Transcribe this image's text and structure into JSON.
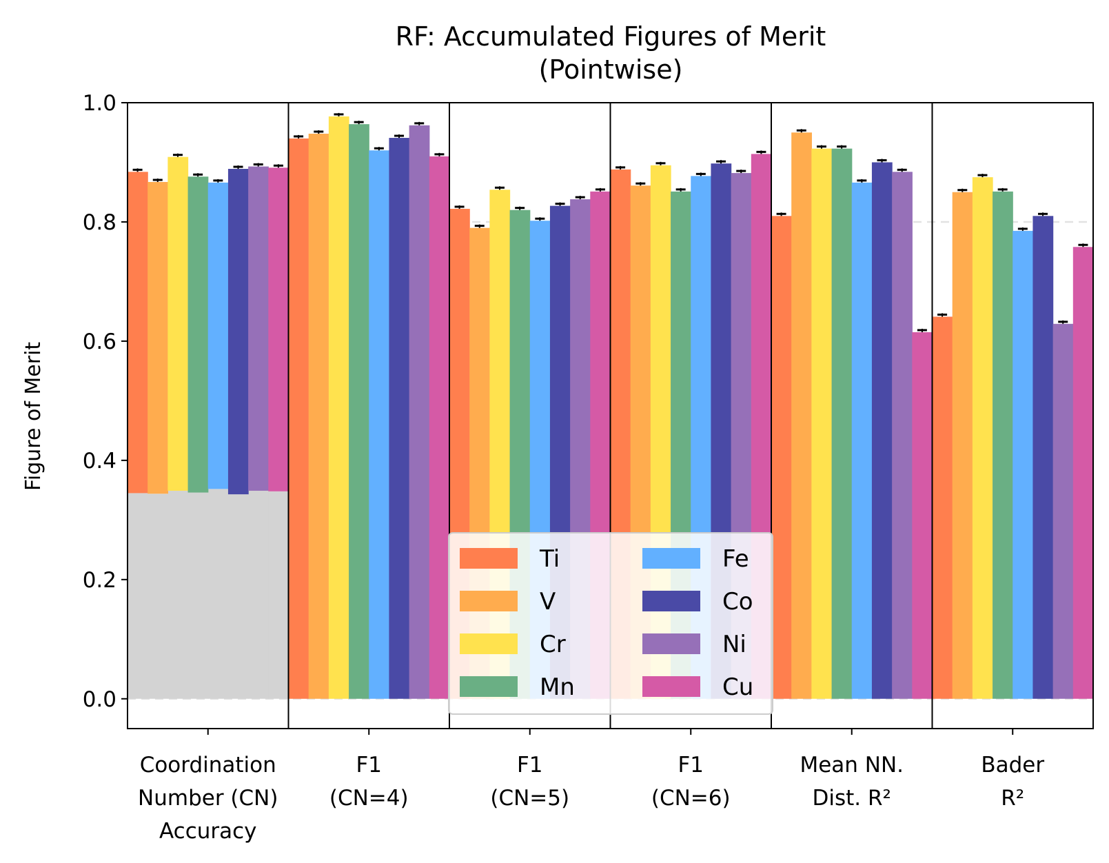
{
  "chart_data": {
    "type": "bar",
    "title": "RF: Accumulated Figures of Merit",
    "subtitle": "(Pointwise)",
    "xlabel": "",
    "ylabel": "Figure of Merit",
    "ylim": [
      -0.05,
      1.0
    ],
    "yticks": [
      "0.0",
      "0.2",
      "0.4",
      "0.6",
      "0.8",
      "1.0"
    ],
    "ytick_values": [
      0.0,
      0.2,
      0.4,
      0.6,
      0.8,
      1.0
    ],
    "grid": "horizontal dashed",
    "legend_position": "lower-center",
    "groups": [
      {
        "label_lines": [
          "Coordination",
          "Number (CN)",
          "Accuracy"
        ]
      },
      {
        "label_lines": [
          "F1",
          "(CN=4)"
        ]
      },
      {
        "label_lines": [
          "F1",
          "(CN=5)"
        ]
      },
      {
        "label_lines": [
          "F1",
          "(CN=6)"
        ]
      },
      {
        "label_lines": [
          "Mean NN.",
          "Dist. R²"
        ]
      },
      {
        "label_lines": [
          "Bader",
          "R²"
        ]
      }
    ],
    "series": [
      {
        "name": "Ti",
        "color": "#ff7f4e",
        "values": [
          0.884,
          0.94,
          0.822,
          0.888,
          0.81,
          0.641
        ]
      },
      {
        "name": "V",
        "color": "#ffac4e",
        "values": [
          0.867,
          0.948,
          0.79,
          0.861,
          0.95,
          0.85
        ]
      },
      {
        "name": "Cr",
        "color": "#ffe24e",
        "values": [
          0.909,
          0.977,
          0.854,
          0.895,
          0.923,
          0.875
        ]
      },
      {
        "name": "Mn",
        "color": "#6aaf84",
        "values": [
          0.876,
          0.964,
          0.82,
          0.851,
          0.923,
          0.851
        ]
      },
      {
        "name": "Fe",
        "color": "#62b0ff",
        "values": [
          0.866,
          0.92,
          0.802,
          0.877,
          0.866,
          0.785
        ]
      },
      {
        "name": "Co",
        "color": "#4a4aa6",
        "values": [
          0.889,
          0.941,
          0.827,
          0.898,
          0.9,
          0.81
        ]
      },
      {
        "name": "Ni",
        "color": "#9670b8",
        "values": [
          0.893,
          0.962,
          0.838,
          0.882,
          0.884,
          0.629
        ]
      },
      {
        "name": "Cu",
        "color": "#d55aa6",
        "values": [
          0.891,
          0.91,
          0.851,
          0.914,
          0.615,
          0.758
        ]
      }
    ],
    "baseline": {
      "group_index": 0,
      "color": "#d3d3d3",
      "values": [
        0.345,
        0.344,
        0.349,
        0.346,
        0.352,
        0.343,
        0.349,
        0.348
      ]
    }
  }
}
